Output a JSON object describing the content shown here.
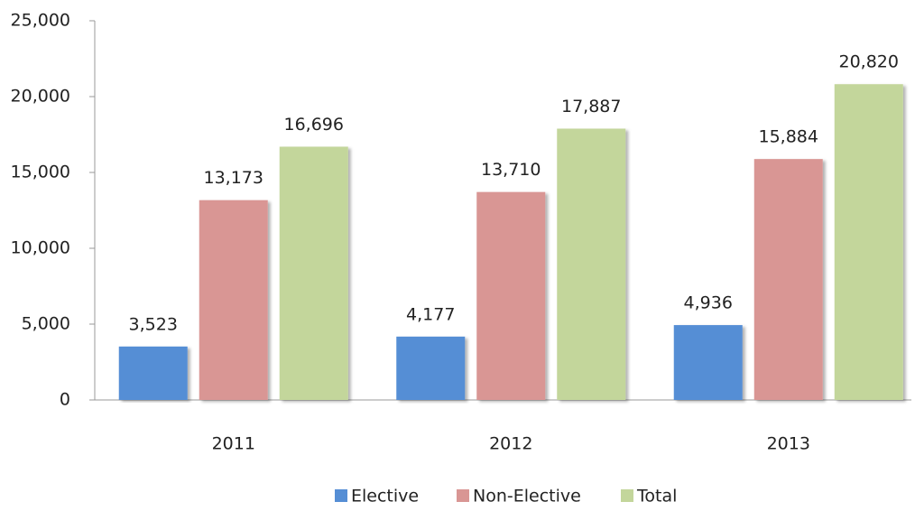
{
  "chart_data": {
    "type": "bar",
    "categories": [
      "2011",
      "2012",
      "2013"
    ],
    "series": [
      {
        "name": "Elective",
        "color": "#558ed5",
        "values": [
          3523,
          4177,
          4936
        ],
        "value_labels": [
          "3,523",
          "4,177",
          "4,936"
        ]
      },
      {
        "name": "Non-Elective",
        "color": "#d99694",
        "values": [
          13173,
          13710,
          15884
        ],
        "value_labels": [
          "13,173",
          "13,710",
          "15,884"
        ]
      },
      {
        "name": "Total",
        "color": "#c3d69b",
        "values": [
          16696,
          17887,
          20820
        ],
        "value_labels": [
          "16,696",
          "17,887",
          "20,820"
        ]
      }
    ],
    "ylim": [
      0,
      25000
    ],
    "yticks": [
      0,
      {
        "value": 5000,
        "label": "5,000"
      },
      {
        "value": 10000,
        "label": "10,000"
      },
      {
        "value": 15000,
        "label": "15,000"
      },
      {
        "value": 20000,
        "label": "20,000"
      },
      {
        "value": 25000,
        "label": "25,000"
      }
    ],
    "legend": "bottom"
  }
}
